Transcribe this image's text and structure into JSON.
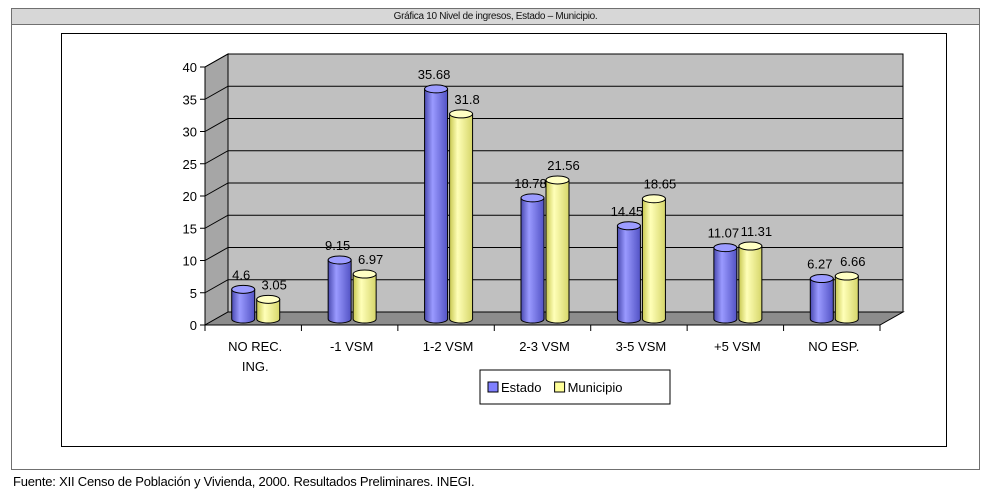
{
  "header": {
    "title": "Gráfica 10 Nivel de ingresos, Estado – Municipio."
  },
  "footer": {
    "source": "Fuente: XII Censo de Población y Vivienda, 2000. Resultados Preliminares. INEGI."
  },
  "chart_data": {
    "type": "bar",
    "style": "3d-cylinder",
    "categories": [
      [
        "NO REC.",
        "ING."
      ],
      [
        "-1 VSM"
      ],
      [
        "1-2 VSM"
      ],
      [
        "2-3 VSM"
      ],
      [
        "3-5 VSM"
      ],
      [
        "+5 VSM"
      ],
      [
        "NO ESP."
      ]
    ],
    "series": [
      {
        "name": "Estado",
        "values": [
          4.6,
          9.15,
          35.68,
          18.78,
          14.45,
          11.07,
          6.27
        ],
        "labels": [
          "4.6",
          "9.15",
          "35.68",
          "18.78",
          "14.45",
          "11.07",
          "6.27"
        ],
        "color": "#8080ff"
      },
      {
        "name": "Municipio",
        "values": [
          3.05,
          6.97,
          31.8,
          21.56,
          18.65,
          11.31,
          6.66
        ],
        "labels": [
          "3.05",
          "6.97",
          "31.8",
          "21.56",
          "18.65",
          "11.31",
          "6.66"
        ],
        "color": "#ffff99"
      }
    ],
    "yticks": [
      "0",
      "5",
      "10",
      "15",
      "20",
      "25",
      "30",
      "35",
      "40"
    ],
    "ylim": [
      0,
      40
    ],
    "grid": true,
    "legend_position": "bottom"
  }
}
